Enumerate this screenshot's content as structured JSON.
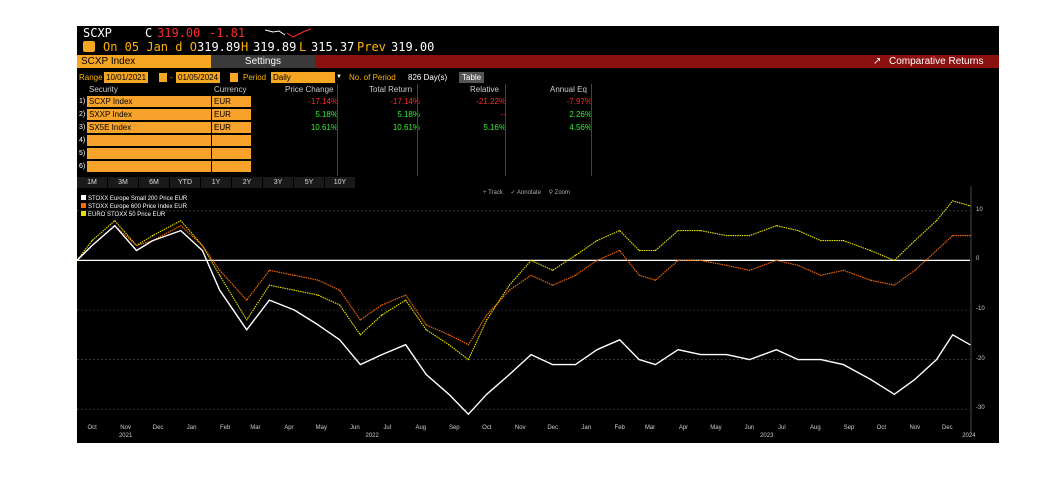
{
  "header": {
    "ticker": "SCXP",
    "price_prefix": "C",
    "price": "319.00",
    "change": "-1.81",
    "line2_prefix": "On 05 Jan d O",
    "open": "319.89",
    "high_label": "H",
    "high": "319.89",
    "low_label": "L",
    "low": "315.37",
    "prev_label": "Prev",
    "prev": "319.00"
  },
  "tabs": {
    "security_tab": "SCXP Index",
    "settings_tab": "Settings",
    "function_title": "Comparative Returns"
  },
  "controls": {
    "range_label": "Range",
    "range_start": "10/01/2021",
    "range_sep": "-",
    "range_end": "01/05/2024",
    "period_label": "Period",
    "period_value": "Daily",
    "num_period_label": "No. of Period",
    "num_period_value": "826 Day(s)",
    "table_button": "Table"
  },
  "table": {
    "headers": [
      "Security",
      "Currency",
      "Price Change",
      "Total Return",
      "Relative",
      "Annual Eq"
    ],
    "rows": [
      {
        "num": "1)",
        "security": "SCXP Index",
        "currency": "EUR",
        "price_change": "-17.14%",
        "total_return": "-17.14%",
        "relative": "-21.22%",
        "annual_eq": "-7.97%"
      },
      {
        "num": "2)",
        "security": "SXXP Index",
        "currency": "EUR",
        "price_change": "5.18%",
        "total_return": "5.18%",
        "relative": "--",
        "annual_eq": "2.26%"
      },
      {
        "num": "3)",
        "security": "SX5E Index",
        "currency": "EUR",
        "price_change": "10.61%",
        "total_return": "10.61%",
        "relative": "5.16%",
        "annual_eq": "4.56%"
      },
      {
        "num": "4)",
        "security": "",
        "currency": "",
        "price_change": "",
        "total_return": "",
        "relative": "",
        "annual_eq": ""
      },
      {
        "num": "5)",
        "security": "",
        "currency": "",
        "price_change": "",
        "total_return": "",
        "relative": "",
        "annual_eq": ""
      },
      {
        "num": "6)",
        "security": "",
        "currency": "",
        "price_change": "",
        "total_return": "",
        "relative": "",
        "annual_eq": ""
      }
    ]
  },
  "range_buttons": [
    "1M",
    "3M",
    "6M",
    "YTD",
    "1Y",
    "2Y",
    "3Y",
    "5Y",
    "10Y"
  ],
  "chart_tools": [
    "Track",
    "Annotate",
    "Zoom"
  ],
  "colors": {
    "scxp": "#ffffff",
    "sxxp": "#ff6a00",
    "sx5e": "#e8e000",
    "positive": "#33ee33",
    "negative": "#ff2a2a",
    "accent": "#f5a623",
    "banner": "#8b1010"
  },
  "chart_data": {
    "type": "line",
    "title": "",
    "xlabel": "",
    "ylabel": "",
    "x_range": [
      "2021-10-01",
      "2024-01-05"
    ],
    "ylim": [
      -35,
      15
    ],
    "y_ticks": [
      10,
      0,
      -10,
      -20,
      -30
    ],
    "month_labels": [
      "Oct",
      "Nov",
      "Dec",
      "Jan",
      "Feb",
      "Mar",
      "Apr",
      "May",
      "Jun",
      "Jul",
      "Aug",
      "Sep",
      "Oct",
      "Nov",
      "Dec",
      "Jan",
      "Feb",
      "Mar",
      "Apr",
      "May",
      "Jun",
      "Jul",
      "Aug",
      "Sep",
      "Oct",
      "Nov",
      "Dec"
    ],
    "year_labels": [
      "2021",
      "2022",
      "2023",
      "2024"
    ],
    "legend_position": "top-left",
    "grid": true,
    "series": [
      {
        "name": "STOXX Europe Small 200 Price EUR",
        "x": [
          "2021-10-01",
          "2021-10-15",
          "2021-11-05",
          "2021-11-25",
          "2021-12-10",
          "2022-01-05",
          "2022-01-25",
          "2022-02-10",
          "2022-03-07",
          "2022-03-28",
          "2022-04-20",
          "2022-05-12",
          "2022-06-01",
          "2022-06-20",
          "2022-07-10",
          "2022-08-01",
          "2022-08-20",
          "2022-09-10",
          "2022-09-28",
          "2022-10-15",
          "2022-11-05",
          "2022-11-25",
          "2022-12-15",
          "2023-01-05",
          "2023-01-25",
          "2023-02-15",
          "2023-03-05",
          "2023-03-20",
          "2023-04-10",
          "2023-05-01",
          "2023-05-25",
          "2023-06-15",
          "2023-07-10",
          "2023-07-30",
          "2023-08-20",
          "2023-09-10",
          "2023-10-05",
          "2023-10-27",
          "2023-11-15",
          "2023-12-05",
          "2023-12-20",
          "2024-01-05"
        ],
        "values": [
          0,
          3,
          7,
          2,
          4,
          6,
          2,
          -6,
          -14,
          -8,
          -10,
          -13,
          -16,
          -21,
          -19,
          -17,
          -23,
          -27,
          -31,
          -27,
          -23,
          -19,
          -21,
          -21,
          -18,
          -16,
          -20,
          -21,
          -18,
          -19,
          -19,
          -20,
          -18,
          -20,
          -20,
          -21,
          -24,
          -27,
          -24,
          -20,
          -15,
          -17
        ]
      },
      {
        "name": "STOXX Europe 600 Price Index EUR",
        "x": [
          "2021-10-01",
          "2021-10-15",
          "2021-11-05",
          "2021-11-25",
          "2021-12-10",
          "2022-01-05",
          "2022-01-25",
          "2022-02-10",
          "2022-03-07",
          "2022-03-28",
          "2022-04-20",
          "2022-05-12",
          "2022-06-01",
          "2022-06-20",
          "2022-07-10",
          "2022-08-01",
          "2022-08-20",
          "2022-09-10",
          "2022-09-28",
          "2022-10-15",
          "2022-11-05",
          "2022-11-25",
          "2022-12-15",
          "2023-01-05",
          "2023-01-25",
          "2023-02-15",
          "2023-03-05",
          "2023-03-20",
          "2023-04-10",
          "2023-05-01",
          "2023-05-25",
          "2023-06-15",
          "2023-07-10",
          "2023-07-30",
          "2023-08-20",
          "2023-09-10",
          "2023-10-05",
          "2023-10-27",
          "2023-11-15",
          "2023-12-05",
          "2023-12-20",
          "2024-01-05"
        ],
        "values": [
          0,
          3,
          7,
          3,
          4,
          7,
          3,
          -2,
          -8,
          -2,
          -3,
          -4,
          -6,
          -12,
          -9,
          -7,
          -13,
          -15,
          -17,
          -11,
          -6,
          -3,
          -5,
          -3,
          0,
          2,
          -3,
          -4,
          0,
          0,
          -1,
          -2,
          0,
          -1,
          -3,
          -2,
          -4,
          -5,
          -2,
          2,
          5,
          5
        ]
      },
      {
        "name": "EURO STOXX 50 Price EUR",
        "x": [
          "2021-10-01",
          "2021-10-15",
          "2021-11-05",
          "2021-11-25",
          "2021-12-10",
          "2022-01-05",
          "2022-01-25",
          "2022-02-10",
          "2022-03-07",
          "2022-03-28",
          "2022-04-20",
          "2022-05-12",
          "2022-06-01",
          "2022-06-20",
          "2022-07-10",
          "2022-08-01",
          "2022-08-20",
          "2022-09-10",
          "2022-09-28",
          "2022-10-15",
          "2022-11-05",
          "2022-11-25",
          "2022-12-15",
          "2023-01-05",
          "2023-01-25",
          "2023-02-15",
          "2023-03-05",
          "2023-03-20",
          "2023-04-10",
          "2023-05-01",
          "2023-05-25",
          "2023-06-15",
          "2023-07-10",
          "2023-07-30",
          "2023-08-20",
          "2023-09-10",
          "2023-10-05",
          "2023-10-27",
          "2023-11-15",
          "2023-12-05",
          "2023-12-20",
          "2024-01-05"
        ],
        "values": [
          0,
          4,
          8,
          3,
          5,
          8,
          3,
          -3,
          -12,
          -5,
          -6,
          -7,
          -9,
          -15,
          -11,
          -8,
          -14,
          -17,
          -20,
          -12,
          -5,
          0,
          -2,
          1,
          4,
          6,
          2,
          2,
          6,
          6,
          5,
          5,
          7,
          6,
          4,
          4,
          2,
          0,
          4,
          8,
          12,
          11
        ]
      }
    ]
  }
}
